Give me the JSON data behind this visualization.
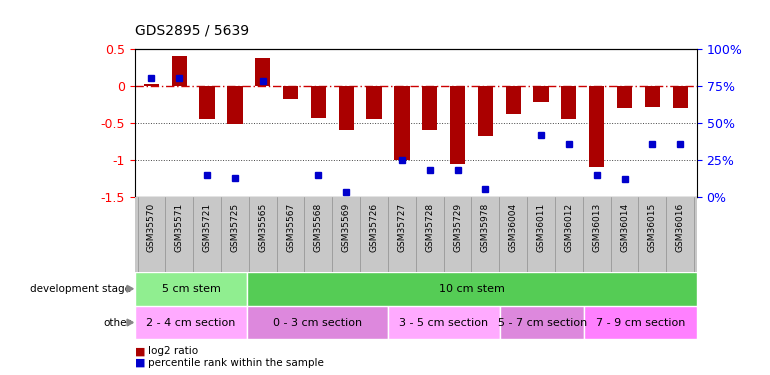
{
  "title": "GDS2895 / 5639",
  "samples": [
    "GSM35570",
    "GSM35571",
    "GSM35721",
    "GSM35725",
    "GSM35565",
    "GSM35567",
    "GSM35568",
    "GSM35569",
    "GSM35726",
    "GSM35727",
    "GSM35728",
    "GSM35729",
    "GSM35978",
    "GSM36004",
    "GSM36011",
    "GSM36012",
    "GSM36013",
    "GSM36014",
    "GSM36015",
    "GSM36016"
  ],
  "log2_ratio": [
    0.02,
    0.4,
    -0.45,
    -0.52,
    0.38,
    -0.18,
    -0.43,
    -0.6,
    -0.45,
    -1.0,
    -0.6,
    -1.05,
    -0.68,
    -0.38,
    -0.22,
    -0.45,
    -1.1,
    -0.3,
    -0.28,
    -0.3
  ],
  "pct_rank": [
    80,
    80,
    15,
    13,
    78,
    null,
    15,
    3,
    null,
    25,
    18,
    18,
    5,
    null,
    42,
    36,
    15,
    12,
    36,
    36
  ],
  "ylim": [
    -1.5,
    0.5
  ],
  "yticks": [
    0.5,
    0.0,
    -0.5,
    -1.0,
    -1.5
  ],
  "right_yticks": [
    100,
    75,
    50,
    25,
    0
  ],
  "bar_color": "#AA0000",
  "dot_color": "#0000CC",
  "hline_color": "#CC0000",
  "dotline_color": "#444444",
  "dev_stage_groups": [
    {
      "label": "5 cm stem",
      "start": 0,
      "end": 4,
      "color": "#90EE90"
    },
    {
      "label": "10 cm stem",
      "start": 4,
      "end": 20,
      "color": "#55CC55"
    }
  ],
  "other_groups": [
    {
      "label": "2 - 4 cm section",
      "start": 0,
      "end": 4,
      "color": "#FFAAFF"
    },
    {
      "label": "0 - 3 cm section",
      "start": 4,
      "end": 9,
      "color": "#DD88DD"
    },
    {
      "label": "3 - 5 cm section",
      "start": 9,
      "end": 13,
      "color": "#FFAAFF"
    },
    {
      "label": "5 - 7 cm section",
      "start": 13,
      "end": 16,
      "color": "#DD88DD"
    },
    {
      "label": "7 - 9 cm section",
      "start": 16,
      "end": 20,
      "color": "#FF80FF"
    }
  ],
  "legend_bar_label": "log2 ratio",
  "legend_dot_label": "percentile rank within the sample",
  "xlabel_bg": "#C8C8C8",
  "plot_bg": "#FFFFFF"
}
